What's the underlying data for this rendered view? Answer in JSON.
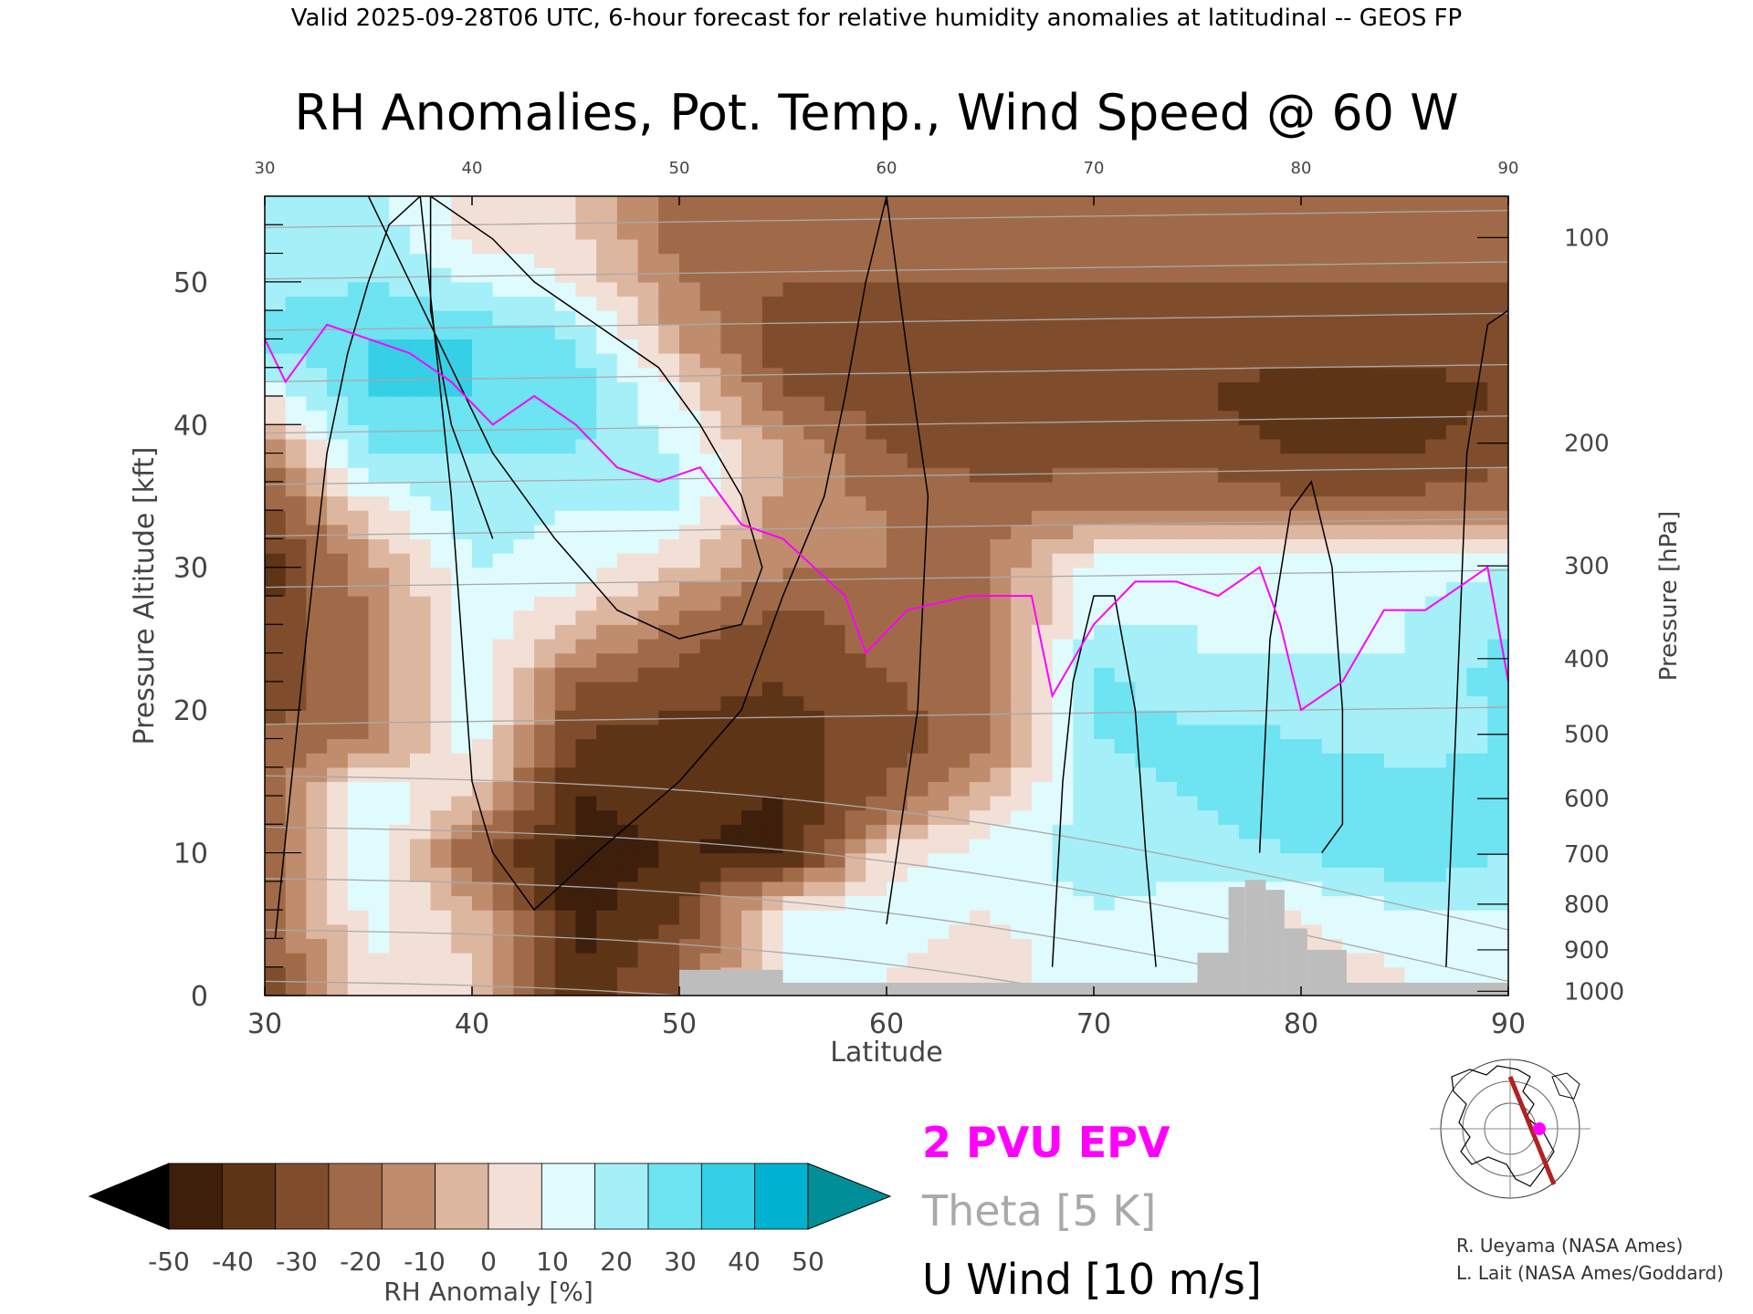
{
  "header": {
    "valid_line": "Valid 2025-09-28T06 UTC, 6-hour forecast for relative humidity anomalies at latitudinal -- GEOS FP"
  },
  "chart_data": {
    "type": "heatmap",
    "title": "RH Anomalies, Pot. Temp., Wind Speed @ 60 W",
    "xlabel": "Latitude",
    "ylabel_left": "Pressure Altitude [kft]",
    "ylabel_right": "Pressure [hPa]",
    "xlim": [
      30,
      90
    ],
    "ylim": [
      0,
      56
    ],
    "x_ticks": [
      30,
      40,
      50,
      60,
      70,
      80,
      90
    ],
    "x_top_ticks": [
      30,
      40,
      50,
      60,
      70,
      80,
      90
    ],
    "y_ticks": [
      0,
      10,
      20,
      30,
      40,
      50
    ],
    "pressure_ticks": [
      {
        "hPa": 100,
        "kft": 53.1
      },
      {
        "hPa": 200,
        "kft": 38.7
      },
      {
        "hPa": 300,
        "kft": 30.1
      },
      {
        "hPa": 400,
        "kft": 23.6
      },
      {
        "hPa": 500,
        "kft": 18.3
      },
      {
        "hPa": 600,
        "kft": 13.8
      },
      {
        "hPa": 700,
        "kft": 9.9
      },
      {
        "hPa": 800,
        "kft": 6.4
      },
      {
        "hPa": 900,
        "kft": 3.2
      },
      {
        "hPa": 1000,
        "kft": 0.3
      }
    ],
    "rh_anomaly_samples": {
      "latitudes": [
        30,
        35,
        40,
        45,
        50,
        55,
        60,
        65,
        70,
        75,
        80,
        85,
        90
      ],
      "altitudes_kft": [
        2,
        6,
        10,
        14,
        18,
        22,
        26,
        30,
        34,
        38,
        42,
        46,
        50,
        54
      ],
      "values": [
        [
          -25,
          20,
          10,
          -40,
          -20,
          20,
          20,
          15,
          25,
          20,
          15,
          20,
          25
        ],
        [
          -20,
          25,
          5,
          -45,
          -30,
          20,
          25,
          20,
          30,
          25,
          20,
          30,
          30
        ],
        [
          -25,
          30,
          -20,
          -45,
          -40,
          -45,
          15,
          25,
          35,
          35,
          40,
          50,
          40
        ],
        [
          -15,
          30,
          10,
          -40,
          -35,
          -40,
          -20,
          10,
          35,
          40,
          50,
          45,
          45
        ],
        [
          -20,
          -10,
          25,
          -30,
          -35,
          -35,
          -25,
          -15,
          40,
          45,
          40,
          35,
          40
        ],
        [
          -25,
          -15,
          35,
          -20,
          -25,
          -30,
          -20,
          -15,
          45,
          30,
          35,
          30,
          45
        ],
        [
          -30,
          -10,
          25,
          10,
          -15,
          -25,
          -15,
          -10,
          30,
          30,
          25,
          30,
          40
        ],
        [
          -35,
          -5,
          30,
          25,
          10,
          -10,
          -10,
          -10,
          25,
          30,
          25,
          25,
          30
        ],
        [
          -25,
          15,
          35,
          30,
          30,
          -5,
          -10,
          -15,
          -10,
          -10,
          -15,
          -15,
          -10
        ],
        [
          -10,
          40,
          40,
          40,
          30,
          0,
          -20,
          -25,
          -25,
          -25,
          -30,
          -30,
          -25
        ],
        [
          20,
          50,
          50,
          45,
          20,
          -20,
          -25,
          -30,
          -30,
          -30,
          -35,
          -35,
          -30
        ],
        [
          45,
          50,
          50,
          40,
          0,
          -25,
          -25,
          -25,
          -25,
          -25,
          -25,
          -25,
          -25
        ],
        [
          35,
          40,
          30,
          20,
          -10,
          -20,
          -20,
          -20,
          -20,
          -20,
          -20,
          -20,
          -20
        ],
        [
          40,
          35,
          15,
          10,
          -15,
          -20,
          -15,
          -15,
          -15,
          -15,
          -15,
          -15,
          -15
        ]
      ]
    },
    "epv_2pvu_line": {
      "lat": [
        30,
        31,
        33,
        35,
        37,
        39,
        41,
        43,
        45,
        47,
        49,
        51,
        53,
        55,
        58,
        59,
        61,
        64,
        67,
        68,
        70,
        72,
        74,
        76,
        78,
        79,
        80,
        82,
        84,
        86,
        88,
        89,
        90
      ],
      "alt_kft": [
        46,
        43,
        47,
        46,
        45,
        43,
        40,
        42,
        40,
        37,
        36,
        37,
        33,
        32,
        28,
        24,
        27,
        28,
        28,
        21,
        26,
        29,
        29,
        28,
        30,
        26,
        20,
        22,
        27,
        27,
        29,
        30,
        22
      ]
    },
    "u_wind_contours": [
      {
        "label": "30",
        "lat": [
          35,
          37,
          39,
          41,
          44,
          47,
          50,
          53,
          54,
          53,
          51,
          49,
          46,
          43,
          41,
          39,
          38,
          38,
          39,
          41
        ],
        "alt_kft": [
          56,
          50,
          44,
          38,
          32,
          27,
          25,
          26,
          30,
          35,
          40,
          44,
          47,
          50,
          53,
          55,
          56,
          48,
          40,
          32
        ]
      },
      {
        "label": "10",
        "lat": [
          30.5,
          32,
          33,
          34,
          35,
          36,
          37.5,
          39,
          40,
          41,
          43,
          46,
          50,
          53,
          55,
          57,
          58,
          59,
          60,
          61,
          62,
          61.5,
          60
        ],
        "alt_kft": [
          4,
          25,
          38,
          45,
          50,
          54,
          56,
          35,
          15,
          10,
          6,
          10,
          15,
          20,
          28,
          35,
          42,
          50,
          56,
          45,
          35,
          20,
          5
        ]
      },
      {
        "label": "10",
        "lat": [
          68,
          68.5,
          69,
          70,
          71,
          72,
          72.5,
          73
        ],
        "alt_kft": [
          2,
          15,
          22,
          28,
          28,
          20,
          10,
          2
        ]
      },
      {
        "label": "10",
        "lat": [
          78,
          78.5,
          79.5,
          80.5,
          81.5,
          82,
          82,
          81
        ],
        "alt_kft": [
          10,
          25,
          34,
          36,
          30,
          20,
          12,
          10
        ]
      },
      {
        "label": "10",
        "lat": [
          87,
          87.5,
          88,
          89,
          90
        ],
        "alt_kft": [
          2,
          20,
          38,
          47,
          48
        ]
      }
    ],
    "theta_levels": [
      280,
      290,
      300,
      310,
      320,
      330,
      340,
      350,
      360,
      370,
      380,
      390,
      400,
      410,
      420
    ],
    "terrain": [
      {
        "lat_start": 50,
        "lat_end": 55,
        "alt_kft": 1.8
      },
      {
        "lat_start": 55,
        "lat_end": 75,
        "alt_kft": 0.9
      },
      {
        "lat_start": 75,
        "lat_end": 76.5,
        "alt_kft": 3.0
      },
      {
        "lat_start": 76.5,
        "lat_end": 77.3,
        "alt_kft": 7.6
      },
      {
        "lat_start": 77.3,
        "lat_end": 78.3,
        "alt_kft": 8.1
      },
      {
        "lat_start": 78.3,
        "lat_end": 79.2,
        "alt_kft": 7.4
      },
      {
        "lat_start": 79.2,
        "lat_end": 80.3,
        "alt_kft": 4.7
      },
      {
        "lat_start": 80.3,
        "lat_end": 82.2,
        "alt_kft": 3.2
      },
      {
        "lat_start": 82.2,
        "lat_end": 90,
        "alt_kft": 0.9
      }
    ],
    "colorbar": {
      "label": "RH Anomaly [%]",
      "ticks": [
        -50,
        -40,
        -30,
        -20,
        -10,
        0,
        10,
        20,
        30,
        40,
        50
      ],
      "colors": [
        "#000000",
        "#3d1f0c",
        "#5e3417",
        "#804d2c",
        "#a06a48",
        "#bf8c6d",
        "#ddb6a0",
        "#f2e0d6",
        "#e0fbfd",
        "#a5f0f8",
        "#6ee3f1",
        "#35cfe6",
        "#00b2cf",
        "#008f99"
      ]
    },
    "legend": {
      "epv": "2 PVU EPV",
      "theta": "Theta [5 K]",
      "u_wind": "U Wind [10 m/s]"
    }
  },
  "credits": {
    "line1": "R. Ueyama (NASA Ames)",
    "line2": "L. Lait (NASA Ames/Goddard)"
  },
  "colors": {
    "epv": "#ff00ff",
    "theta": "#a9a9a9",
    "wind": "#000000",
    "terrain": "#bdbdbd",
    "section_line": "#b22222",
    "section_marker": "#ff00ff"
  }
}
